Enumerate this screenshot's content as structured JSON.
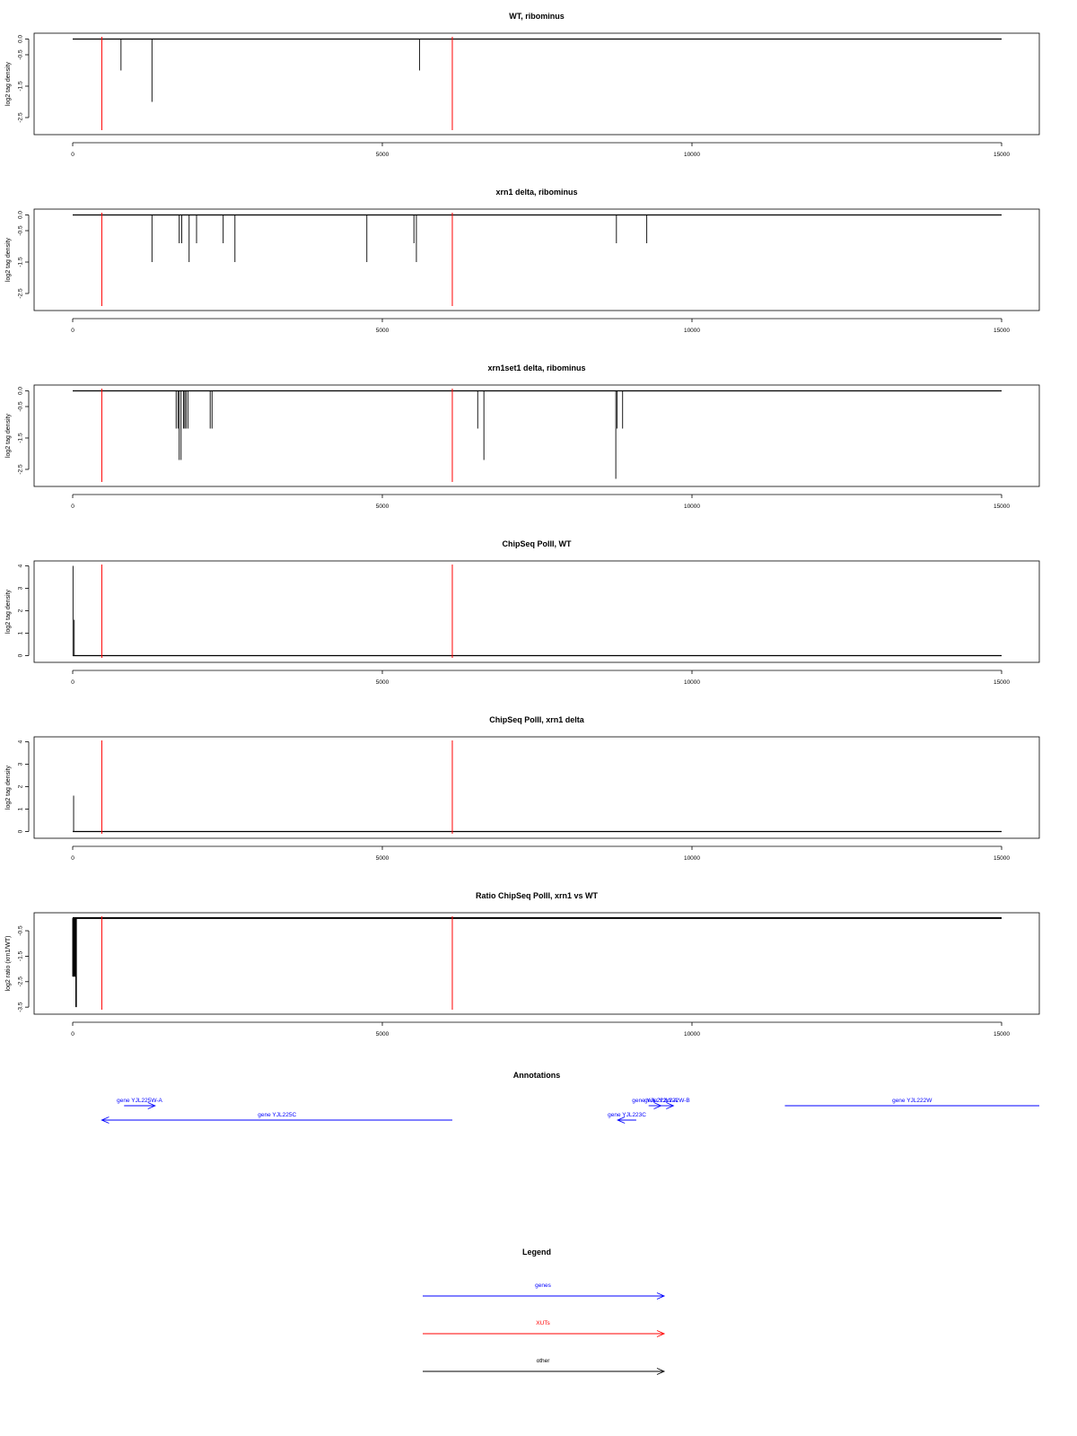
{
  "colors": {
    "genes": "#0000ff",
    "xuts": "#ff0000",
    "other": "#000000",
    "marker": "#ff0000"
  },
  "marker_positions": [
    470,
    6130
  ],
  "chart_data": [
    {
      "type": "bar",
      "title": "WT, ribominus",
      "ylabel": "log2 tag density",
      "xlim": [
        0,
        15000
      ],
      "ylim": [
        -2.9,
        0.1
      ],
      "xticks": [
        0,
        5000,
        10000,
        15000
      ],
      "yticks": [
        0.0,
        -0.5,
        -1.5,
        -2.5
      ],
      "baseline": 0,
      "series": [
        {
          "values": [
            [
              780,
              -1.0
            ],
            [
              1280,
              -2.0
            ],
            [
              5600,
              -1.0
            ]
          ]
        }
      ]
    },
    {
      "type": "bar",
      "title": "xrn1 delta, ribominus",
      "ylabel": "log2 tag density",
      "xlim": [
        0,
        15000
      ],
      "ylim": [
        -2.9,
        0.1
      ],
      "xticks": [
        0,
        5000,
        10000,
        15000
      ],
      "yticks": [
        0.0,
        -0.5,
        -1.5,
        -2.5
      ],
      "baseline": 0,
      "series": [
        {
          "values": [
            [
              1280,
              -1.5
            ],
            [
              1720,
              -0.9
            ],
            [
              1760,
              -0.9
            ],
            [
              1880,
              -1.5
            ],
            [
              2000,
              -0.9
            ],
            [
              2430,
              -0.9
            ],
            [
              2620,
              -1.5
            ],
            [
              4750,
              -1.5
            ],
            [
              5510,
              -0.9
            ],
            [
              5550,
              -1.5
            ],
            [
              8780,
              -0.9
            ],
            [
              9270,
              -0.9
            ]
          ]
        }
      ]
    },
    {
      "type": "bar",
      "title": "xrn1set1 delta, ribominus",
      "ylabel": "log2 tag density",
      "xlim": [
        0,
        15000
      ],
      "ylim": [
        -2.9,
        0.1
      ],
      "xticks": [
        0,
        5000,
        10000,
        15000
      ],
      "yticks": [
        0.0,
        -0.5,
        -1.5,
        -2.5
      ],
      "baseline": 0,
      "series": [
        {
          "values": [
            [
              1670,
              -1.2
            ],
            [
              1700,
              -1.2
            ],
            [
              1720,
              -2.2
            ],
            [
              1750,
              -2.2
            ],
            [
              1790,
              -1.2
            ],
            [
              1810,
              -1.2
            ],
            [
              1830,
              -1.2
            ],
            [
              1860,
              -1.2
            ],
            [
              2220,
              -1.2
            ],
            [
              2250,
              -1.2
            ],
            [
              6540,
              -1.2
            ],
            [
              6640,
              -2.2
            ],
            [
              8770,
              -2.8
            ],
            [
              8790,
              -1.2
            ],
            [
              8880,
              -1.2
            ]
          ]
        }
      ]
    },
    {
      "type": "bar",
      "title": "ChipSeq PolII, WT",
      "ylabel": "log2 tag density",
      "xlim": [
        0,
        15000
      ],
      "ylim": [
        -0.1,
        4.1
      ],
      "xticks": [
        0,
        5000,
        10000,
        15000
      ],
      "yticks": [
        0,
        1,
        2,
        3,
        4
      ],
      "baseline": 0,
      "series": [
        {
          "values": [
            [
              5,
              4.0
            ],
            [
              25,
              1.6
            ]
          ]
        }
      ]
    },
    {
      "type": "bar",
      "title": "ChipSeq PolII, xrn1 delta",
      "ylabel": "log2 tag density",
      "xlim": [
        0,
        15000
      ],
      "ylim": [
        -0.1,
        4.1
      ],
      "xticks": [
        0,
        5000,
        10000,
        15000
      ],
      "yticks": [
        0,
        1,
        2,
        3,
        4
      ],
      "baseline": 0,
      "series": [
        {
          "values": [
            [
              15,
              1.6
            ]
          ]
        }
      ]
    },
    {
      "type": "bar",
      "title": "Ratio ChipSeq PolII, xrn1 vs WT",
      "ylabel": "log2 ratio (xrn1/WT)",
      "xlim": [
        0,
        15000
      ],
      "ylim": [
        -3.6,
        0.1
      ],
      "xticks": [
        0,
        5000,
        10000,
        15000
      ],
      "yticks": [
        -0.5,
        -1.5,
        -2.5,
        -3.5
      ],
      "baseline": 0,
      "series": [
        {
          "values": [
            [
              5,
              -2.3
            ],
            [
              15,
              -2.3
            ],
            [
              25,
              -2.3
            ],
            [
              35,
              -2.3
            ],
            [
              45,
              -2.3
            ],
            [
              55,
              -3.5
            ]
          ]
        }
      ]
    }
  ],
  "annotations": {
    "title": "Annotations",
    "genes": [
      {
        "label": "gene YJL225W-A",
        "start": 830,
        "end": 1330,
        "strand": "+",
        "row": 0
      },
      {
        "label": "gene YJL225C",
        "start": 6130,
        "end": 470,
        "strand": "-",
        "row": 1
      },
      {
        "label": "gene YJL223C",
        "start": 9100,
        "end": 8800,
        "strand": "-",
        "row": 1
      },
      {
        "label": "gene YJL222W-A",
        "start": 9300,
        "end": 9500,
        "strand": "+",
        "row": 0
      },
      {
        "label": "gene YJL222W-B",
        "start": 9500,
        "end": 9700,
        "strand": "+",
        "row": 0
      },
      {
        "label": "gene YJL222W",
        "start": 11500,
        "end": 15600,
        "strand": "+",
        "row": 0
      }
    ]
  },
  "legend": {
    "title": "Legend",
    "entries": [
      {
        "label": "genes",
        "color": "#0000ff"
      },
      {
        "label": "XUTs",
        "color": "#ff0000"
      },
      {
        "label": "other",
        "color": "#000000"
      }
    ]
  }
}
